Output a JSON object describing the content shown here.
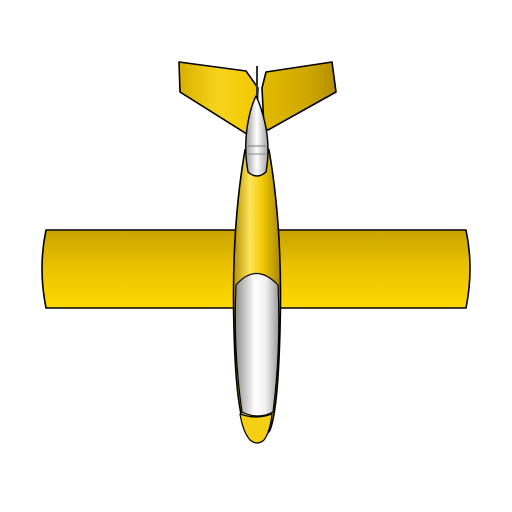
{
  "model": {
    "name": "yellow-airplane",
    "view": "top",
    "background_color": "#ffffff",
    "colors": {
      "body_yellow": "#f2cc0a",
      "body_yellow_light": "#ffe24a",
      "body_yellow_dark": "#b79400",
      "canopy_white": "#ffffff",
      "canopy_grey": "#a7a7a7",
      "outline": "#000000"
    },
    "parts": [
      "left-v-tail-fin",
      "right-v-tail-fin",
      "main-wing",
      "fuselage",
      "canopy",
      "nose-cone",
      "tail-cone"
    ]
  }
}
